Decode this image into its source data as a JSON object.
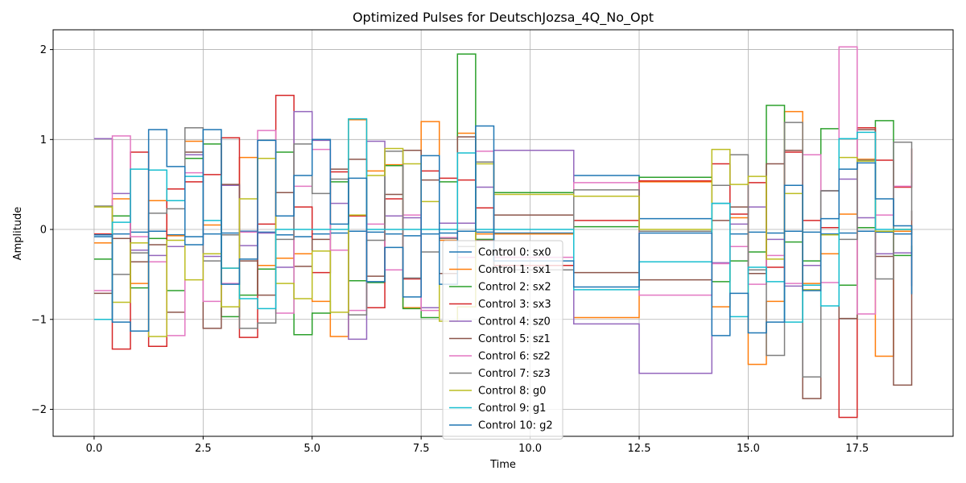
{
  "chart_data": {
    "type": "line",
    "step": "post",
    "title": "Optimized Pulses for DeutschJozsa_4Q_No_Opt",
    "xlabel": "Time",
    "ylabel": "Amplitude",
    "xlim": [
      -0.94,
      19.7
    ],
    "ylim": [
      -2.3,
      2.22
    ],
    "xticks": [
      0,
      2.5,
      5,
      7.5,
      10,
      12.5,
      15,
      17.5
    ],
    "xtick_labels": [
      "0.0",
      "2.5",
      "5.0",
      "7.5",
      "10.0",
      "12.5",
      "15.0",
      "17.5"
    ],
    "yticks": [
      -2,
      -1,
      0,
      1,
      2
    ],
    "ytick_labels": [
      "−2",
      "−1",
      "0",
      "1",
      "2"
    ],
    "grid": true,
    "legend_position": "lower-center",
    "x": [
      0,
      0.417,
      0.833,
      1.25,
      1.667,
      2.083,
      2.5,
      2.917,
      3.333,
      3.75,
      4.167,
      4.583,
      5,
      5.417,
      5.833,
      6.25,
      6.667,
      7.083,
      7.5,
      7.917,
      8.333,
      8.75,
      9.167,
      11,
      12.5,
      14.167,
      14.583,
      15,
      15.417,
      15.833,
      16.25,
      16.667,
      17.083,
      17.5,
      17.917,
      18.333,
      18.75
    ],
    "series": [
      {
        "name": "Control 0: sx0",
        "color": "#1f77b4",
        "values": [
          -0.08,
          -0.05,
          -0.03,
          -0.02,
          -0.06,
          -0.08,
          -0.05,
          -0.04,
          -0.02,
          -0.03,
          -0.06,
          -0.08,
          -0.05,
          -0.04,
          -0.02,
          -0.03,
          -0.05,
          -0.07,
          -0.05,
          -0.04,
          -0.02,
          -0.03,
          -0.04,
          0.6,
          0.12,
          0.29,
          -0.05,
          -0.03,
          -0.04,
          -0.02,
          -0.03,
          -0.05,
          -0.04,
          -0.02,
          -0.03,
          -0.05,
          -0.03
        ]
      },
      {
        "name": "Control 1: sx1",
        "color": "#ff7f0e",
        "values": [
          -0.15,
          0.34,
          -0.6,
          0.32,
          -0.07,
          0.98,
          0.05,
          -0.43,
          0.8,
          -0.4,
          -0.32,
          -0.27,
          -0.8,
          -1.19,
          1.22,
          0.65,
          0.72,
          -0.87,
          1.2,
          -0.12,
          1.07,
          -0.05,
          -0.05,
          -0.98,
          0.53,
          -0.86,
          0.13,
          -1.5,
          -0.8,
          1.31,
          -0.6,
          -0.27,
          0.17,
          0.78,
          -1.41,
          -0.02,
          0.05
        ]
      },
      {
        "name": "Control 2: sx2",
        "color": "#2ca02c",
        "values": [
          -0.33,
          0.15,
          -0.65,
          -0.1,
          -0.68,
          0.79,
          0.95,
          -0.97,
          -0.73,
          -0.44,
          0.86,
          -1.17,
          -0.93,
          0.53,
          -0.57,
          -0.59,
          0.71,
          -0.88,
          -0.98,
          0.53,
          1.95,
          -0.11,
          0.41,
          0.03,
          0.58,
          -0.58,
          -0.35,
          -0.25,
          1.38,
          -0.14,
          -0.35,
          1.12,
          -0.62,
          0.02,
          1.21,
          -0.29,
          -0.18
        ]
      },
      {
        "name": "Control 3: sx3",
        "color": "#d62728",
        "values": [
          -0.05,
          -1.33,
          0.86,
          -1.3,
          0.45,
          0.53,
          0.61,
          1.02,
          -1.2,
          0.06,
          1.49,
          0.25,
          -0.48,
          0.64,
          0.15,
          -0.87,
          0.34,
          -0.55,
          0.65,
          0.57,
          0.55,
          0.24,
          -0.4,
          0.1,
          0.54,
          0.73,
          0.17,
          0.52,
          -0.42,
          0.86,
          0.1,
          0.02,
          -2.09,
          1.13,
          0.77,
          0.47,
          0.9
        ]
      },
      {
        "name": "Control 4: sz0",
        "color": "#9467bd",
        "values": [
          1.01,
          0.4,
          -0.23,
          -0.29,
          -0.19,
          0.83,
          -0.3,
          0.49,
          -0.18,
          -0.04,
          -0.42,
          1.31,
          0.99,
          0.29,
          -1.22,
          0.98,
          0.15,
          0.13,
          -0.87,
          0.07,
          0.07,
          0.47,
          0.88,
          -1.05,
          -1.6,
          -0.37,
          0.06,
          0.25,
          -0.11,
          -0.63,
          -0.4,
          0.43,
          0.56,
          0.13,
          -0.27,
          -0.26,
          -0.63
        ]
      },
      {
        "name": "Control 5: sz1",
        "color": "#8c564b",
        "values": [
          -0.71,
          -0.1,
          -0.36,
          -0.17,
          -0.92,
          0.86,
          -1.1,
          0.5,
          -0.35,
          -0.73,
          0.41,
          -0.41,
          -0.11,
          0.67,
          0.78,
          -0.52,
          0.39,
          0.88,
          0.55,
          -0.49,
          1.03,
          -0.12,
          0.16,
          -0.48,
          -0.56,
          0.1,
          0.25,
          -0.49,
          0.73,
          0.88,
          -1.88,
          0.43,
          -0.99,
          1.11,
          -0.3,
          -1.73,
          0.21
        ]
      },
      {
        "name": "Control 6: sz2",
        "color": "#e377c2",
        "values": [
          -0.68,
          1.04,
          -0.08,
          -0.36,
          -1.18,
          0.63,
          -0.8,
          -0.6,
          -0.03,
          1.1,
          -0.93,
          0.48,
          0.89,
          -0.23,
          -0.9,
          0.06,
          -0.45,
          0.16,
          -0.9,
          -0.09,
          -0.31,
          0.87,
          -0.31,
          0.52,
          -0.73,
          -0.38,
          -0.19,
          -0.61,
          -0.29,
          -0.6,
          0.83,
          -0.59,
          2.03,
          -0.94,
          0.16,
          0.48,
          0.62
        ]
      },
      {
        "name": "Control 7: sz3",
        "color": "#7f7f7f",
        "values": [
          0.26,
          -0.5,
          -0.26,
          0.18,
          0.23,
          1.13,
          -0.35,
          -0.06,
          -1.1,
          -1.04,
          -0.11,
          0.95,
          0.4,
          0.56,
          -0.95,
          -0.12,
          0.87,
          -0.54,
          -0.25,
          -0.1,
          -0.19,
          0.75,
          -0.45,
          0.44,
          -0.02,
          0.49,
          0.83,
          -0.45,
          -1.4,
          1.19,
          -1.64,
          0.43,
          -0.11,
          0.77,
          -0.55,
          0.97,
          0.1
        ]
      },
      {
        "name": "Control 8: g0",
        "color": "#bcbd22",
        "values": [
          0.25,
          -0.81,
          -0.15,
          -1.19,
          -0.12,
          -0.56,
          -0.27,
          -0.86,
          0.34,
          0.79,
          -0.6,
          -0.77,
          -0.24,
          -0.92,
          0.16,
          0.6,
          0.9,
          0.73,
          0.31,
          -1.02,
          -0.86,
          0.73,
          0.39,
          0.37,
          0.0,
          0.89,
          0.5,
          0.59,
          -0.33,
          0.4,
          -0.67,
          -0.06,
          0.8,
          0.76,
          -0.02,
          0.0,
          0.0
        ]
      },
      {
        "name": "Control 9: g1",
        "color": "#17becf",
        "values": [
          -1.0,
          0.08,
          0.67,
          0.66,
          0.32,
          0.59,
          0.1,
          -0.43,
          -0.77,
          -0.88,
          0.0,
          0.0,
          0.0,
          0.0,
          1.23,
          0.0,
          0.0,
          0.0,
          0.0,
          0.0,
          0.85,
          0.0,
          0.0,
          -0.67,
          -0.36,
          0.29,
          -0.97,
          -0.42,
          -0.58,
          -1.03,
          -0.62,
          -0.85,
          1.01,
          1.08,
          0.0,
          0.0,
          0.0
        ]
      },
      {
        "name": "Control 10: g2",
        "color": "#1f77b4",
        "values": [
          -0.06,
          -1.03,
          -1.13,
          1.11,
          0.7,
          -0.17,
          1.11,
          -0.61,
          -0.33,
          0.99,
          0.15,
          0.6,
          1.0,
          0.06,
          0.57,
          -0.58,
          -0.2,
          -0.75,
          0.82,
          -0.61,
          -0.02,
          1.15,
          -0.35,
          -0.64,
          -0.04,
          -1.18,
          -0.71,
          -1.15,
          -1.03,
          0.49,
          -0.68,
          0.12,
          0.67,
          0.74,
          0.34,
          0.04,
          -0.72
        ]
      }
    ]
  }
}
